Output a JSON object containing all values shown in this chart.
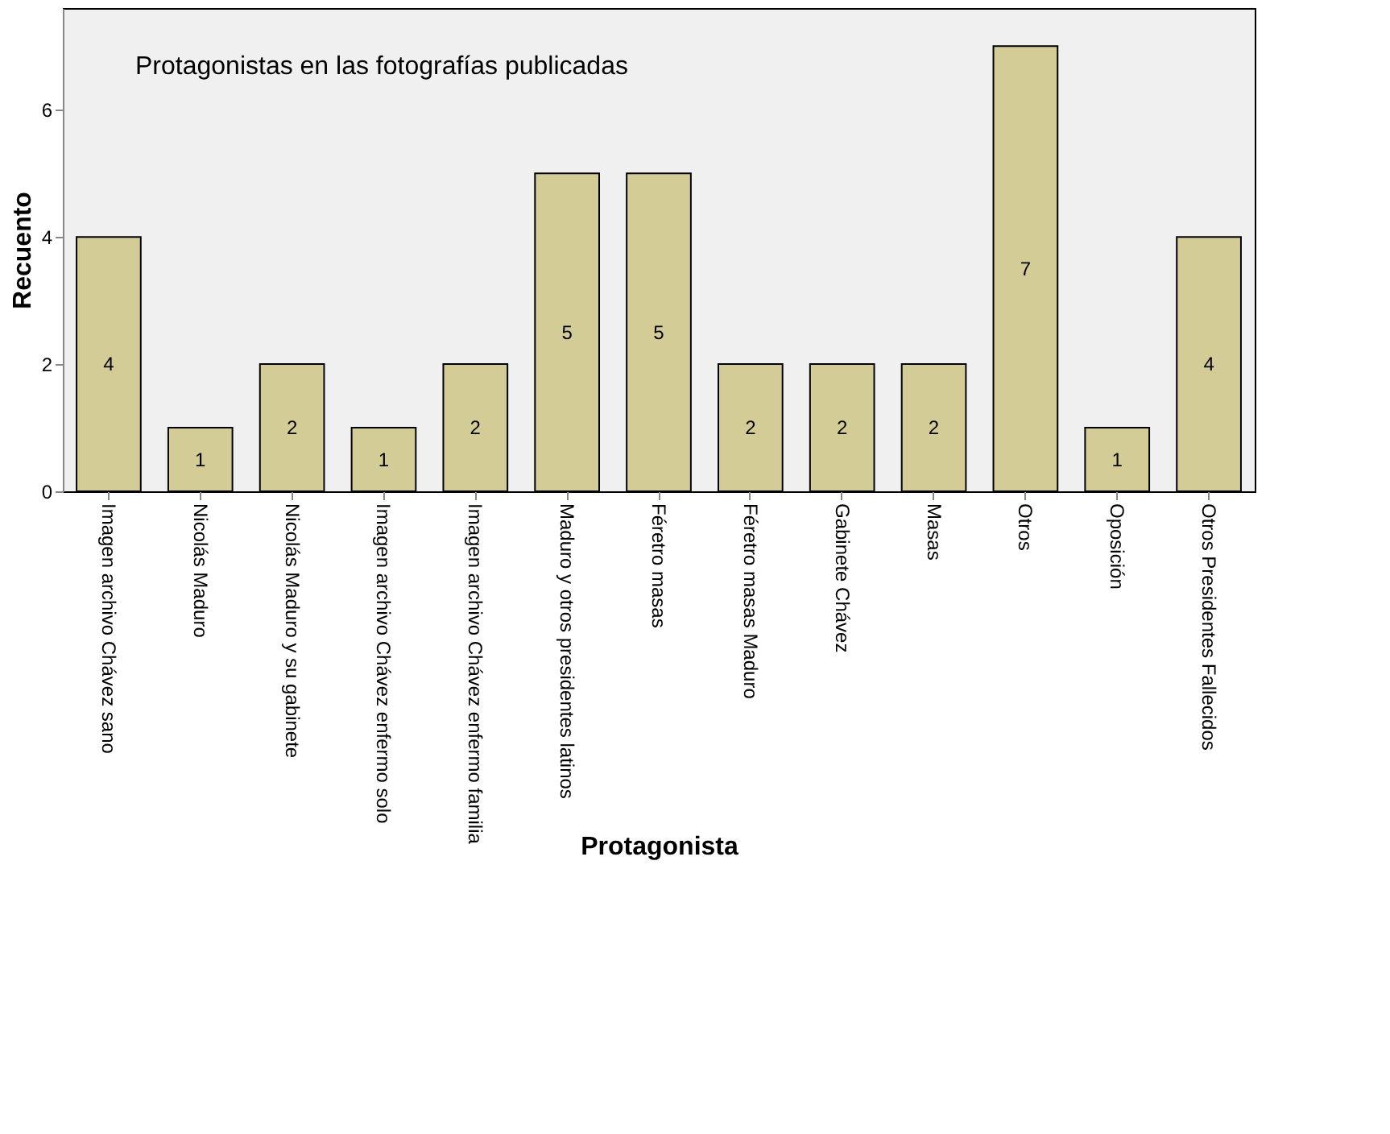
{
  "chart_data": {
    "type": "bar",
    "title": "Protagonistas en las fotografías publicadas",
    "xlabel": "Protagonista",
    "ylabel": "Recuento",
    "categories": [
      "Imagen archivo Chávez sano",
      "Nicolás Maduro",
      "Nicolás Maduro y su gabinete",
      "Imagen archivo Chávez enfermo solo",
      "Imagen archivo Chávez enfermo familia",
      "Maduro y otros presidentes latinos",
      "Féretro masas",
      "Féretro masas Maduro",
      "Gabinete Chávez",
      "Masas",
      "Otros",
      "Oposición",
      "Otros Presidentes Fallecidos"
    ],
    "values": [
      4,
      1,
      2,
      1,
      2,
      5,
      5,
      2,
      2,
      2,
      7,
      1,
      4
    ],
    "color": "#d3cc96",
    "ylim": [
      0,
      7.6
    ],
    "yticks": [
      0,
      2,
      4,
      6
    ],
    "grid": false,
    "data_labels": true
  }
}
